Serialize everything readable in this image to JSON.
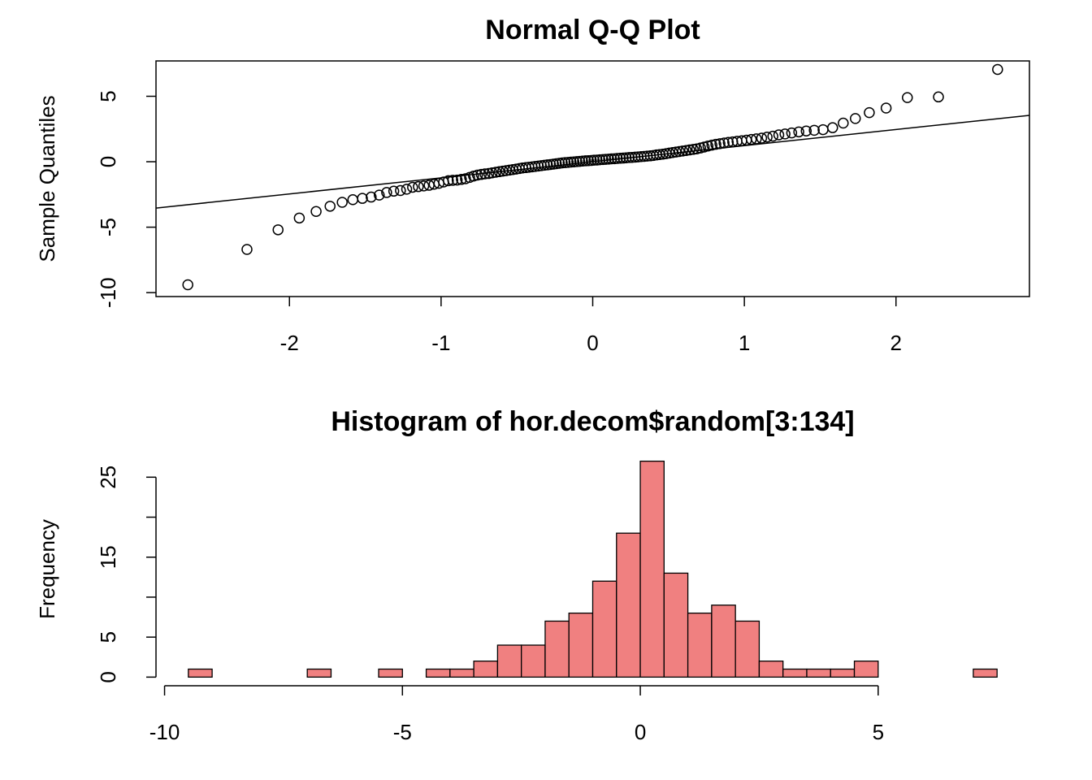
{
  "chart_data": [
    {
      "type": "scatter",
      "title": "Normal Q-Q Plot",
      "y_label": "Sample Quantiles",
      "color": "#000000",
      "x": [
        -2.67,
        -2.28,
        -2.075,
        -1.935,
        -1.824,
        -1.732,
        -1.652,
        -1.582,
        -1.519,
        -1.461,
        -1.408,
        -1.359,
        -1.312,
        -1.268,
        -1.227,
        -1.188,
        -1.15,
        -1.114,
        -1.079,
        -1.046,
        -1.014,
        -0.983,
        -0.952,
        -0.923,
        -0.894,
        -0.866,
        -0.839,
        -0.812,
        -0.786,
        -0.76,
        -0.735,
        -0.711,
        -0.686,
        -0.663,
        -0.639,
        -0.616,
        -0.593,
        -0.571,
        -0.549,
        -0.527,
        -0.505,
        -0.484,
        -0.463,
        -0.441,
        -0.421,
        -0.4,
        -0.38,
        -0.359,
        -0.339,
        -0.319,
        -0.299,
        -0.279,
        -0.259,
        -0.24,
        -0.22,
        -0.201,
        -0.182,
        -0.162,
        -0.143,
        -0.124,
        -0.105,
        -0.086,
        -0.067,
        -0.047,
        -0.028,
        -0.009,
        0.009,
        0.028,
        0.047,
        0.067,
        0.086,
        0.105,
        0.124,
        0.143,
        0.162,
        0.182,
        0.201,
        0.22,
        0.24,
        0.259,
        0.279,
        0.299,
        0.319,
        0.339,
        0.359,
        0.38,
        0.4,
        0.421,
        0.441,
        0.463,
        0.484,
        0.505,
        0.527,
        0.549,
        0.571,
        0.593,
        0.616,
        0.639,
        0.663,
        0.686,
        0.711,
        0.735,
        0.76,
        0.786,
        0.812,
        0.839,
        0.866,
        0.894,
        0.923,
        0.952,
        0.983,
        1.014,
        1.046,
        1.079,
        1.114,
        1.15,
        1.188,
        1.227,
        1.268,
        1.312,
        1.359,
        1.408,
        1.461,
        1.519,
        1.582,
        1.652,
        1.732,
        1.824,
        1.935,
        2.075,
        2.28,
        2.67
      ],
      "y": [
        -9.4,
        -6.7,
        -5.2,
        -4.3,
        -3.8,
        -3.4,
        -3.1,
        -2.9,
        -2.8,
        -2.7,
        -2.55,
        -2.35,
        -2.25,
        -2.2,
        -2.1,
        -1.95,
        -1.9,
        -1.85,
        -1.8,
        -1.72,
        -1.65,
        -1.55,
        -1.45,
        -1.42,
        -1.4,
        -1.35,
        -1.3,
        -1.2,
        -1.1,
        -1.02,
        -0.97,
        -0.93,
        -0.9,
        -0.85,
        -0.8,
        -0.76,
        -0.72,
        -0.68,
        -0.64,
        -0.6,
        -0.56,
        -0.52,
        -0.48,
        -0.45,
        -0.42,
        -0.39,
        -0.36,
        -0.33,
        -0.3,
        -0.27,
        -0.24,
        -0.21,
        -0.18,
        -0.15,
        -0.12,
        -0.09,
        -0.07,
        -0.05,
        -0.03,
        -0.01,
        0.01,
        0.03,
        0.05,
        0.07,
        0.08,
        0.1,
        0.12,
        0.13,
        0.15,
        0.17,
        0.18,
        0.2,
        0.22,
        0.23,
        0.25,
        0.27,
        0.28,
        0.3,
        0.32,
        0.33,
        0.35,
        0.37,
        0.39,
        0.41,
        0.43,
        0.45,
        0.48,
        0.52,
        0.55,
        0.58,
        0.62,
        0.66,
        0.7,
        0.74,
        0.78,
        0.82,
        0.86,
        0.9,
        0.94,
        0.98,
        1.05,
        1.12,
        1.2,
        1.27,
        1.33,
        1.38,
        1.43,
        1.48,
        1.52,
        1.56,
        1.6,
        1.65,
        1.7,
        1.75,
        1.8,
        1.88,
        1.95,
        2.05,
        2.12,
        2.2,
        2.28,
        2.35,
        2.4,
        2.45,
        2.6,
        2.95,
        3.3,
        3.75,
        4.1,
        4.9,
        4.95,
        7.05
      ],
      "reference_line": {
        "slope": 1.23,
        "intercept": 0
      },
      "xlim": [
        -2.88,
        2.88
      ],
      "ylim": [
        -10.3,
        7.7
      ],
      "xticks": [
        -2,
        -1,
        0,
        1,
        2
      ],
      "yticks": [
        -10,
        -5,
        0,
        5
      ]
    },
    {
      "type": "histogram",
      "title": "Histogram of hor.decom$random[3:134]",
      "y_label": "Frequency",
      "color": "#f08080",
      "bins": [
        -9.5,
        -9,
        -8.5,
        -8,
        -7.5,
        -7,
        -6.5,
        -6,
        -5.5,
        -5,
        -4.5,
        -4,
        -3.5,
        -3,
        -2.5,
        -2,
        -1.5,
        -1,
        -0.5,
        0,
        0.5,
        1,
        1.5,
        2,
        2.5,
        3,
        3.5,
        4,
        4.5,
        5,
        5.5,
        6,
        6.5,
        7,
        7.5
      ],
      "values": [
        1,
        0,
        0,
        0,
        0,
        1,
        0,
        0,
        1,
        0,
        1,
        1,
        2,
        4,
        4,
        7,
        8,
        12,
        18,
        27,
        13,
        8,
        9,
        7,
        2,
        1,
        1,
        1,
        2,
        0,
        0,
        0,
        0,
        1
      ],
      "xlim": [
        -10.18,
        8.18
      ],
      "ylim": [
        -1.08,
        28.08
      ],
      "xticks": [
        -10,
        -5,
        0,
        5
      ],
      "yticks": [
        0,
        5,
        {
          "value": 10,
          "label": null
        },
        15,
        {
          "value": 20,
          "label": null
        },
        25
      ]
    }
  ]
}
